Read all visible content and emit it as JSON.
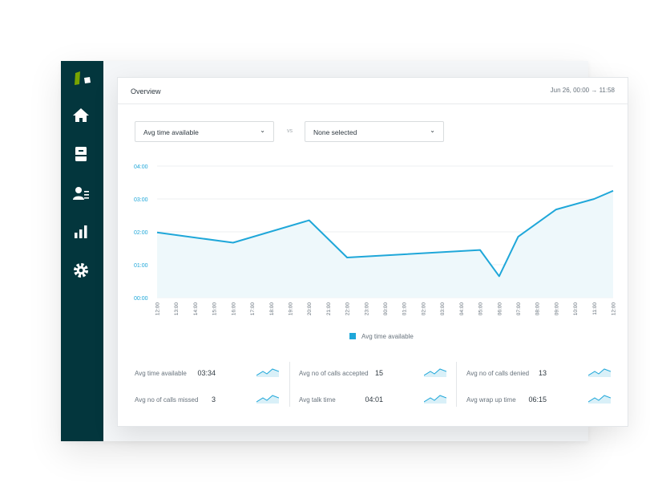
{
  "sidebar": {
    "items": [
      {
        "name": "home-icon"
      },
      {
        "name": "inbox-icon"
      },
      {
        "name": "agents-icon"
      },
      {
        "name": "reporting-icon"
      },
      {
        "name": "settings-icon"
      }
    ]
  },
  "panel": {
    "title": "Overview",
    "range": "Jun 26, 00:00 → 11:58"
  },
  "controls": {
    "metric_select": "Avg time available",
    "vs_label": "vs",
    "compare_select": "None selected"
  },
  "colors": {
    "sidebar": "#03363d",
    "series": "#1fa7d9",
    "axis_text": "#1fa7d9"
  },
  "chart_data": {
    "type": "area",
    "y_ticks": [
      "00:00",
      "01:00",
      "02:00",
      "03:00",
      "04:00"
    ],
    "ylim": [
      0,
      4
    ],
    "x": [
      "12:00",
      "13:00",
      "14:00",
      "15:00",
      "16:00",
      "17:00",
      "18:00",
      "19:00",
      "20:00",
      "21:00",
      "22:00",
      "23:00",
      "00:00",
      "01:00",
      "02:00",
      "03:00",
      "04:00",
      "05:00",
      "06:00",
      "07:00",
      "08:00",
      "09:00",
      "10:00",
      "11:00",
      "12:00"
    ],
    "series": [
      {
        "name": "Avg time available",
        "points": [
          {
            "x": 0,
            "y": 1.98
          },
          {
            "x": 4,
            "y": 1.67
          },
          {
            "x": 8,
            "y": 2.35
          },
          {
            "x": 10,
            "y": 1.22
          },
          {
            "x": 17,
            "y": 1.45
          },
          {
            "x": 18,
            "y": 0.65
          },
          {
            "x": 19,
            "y": 1.85
          },
          {
            "x": 21,
            "y": 2.68
          },
          {
            "x": 23,
            "y": 3.0
          },
          {
            "x": 24,
            "y": 3.25
          }
        ]
      }
    ],
    "legend": "Avg time available",
    "grid": true
  },
  "stats": [
    {
      "label": "Avg time available",
      "value": "03:34"
    },
    {
      "label": "Avg no of calls missed",
      "value": "3"
    },
    {
      "label": "Avg no of calls accepted",
      "value": "15"
    },
    {
      "label": "Avg talk time",
      "value": "04:01"
    },
    {
      "label": "Avg no of calls denied",
      "value": "13"
    },
    {
      "label": "Avg wrap up time",
      "value": "06:15"
    }
  ]
}
